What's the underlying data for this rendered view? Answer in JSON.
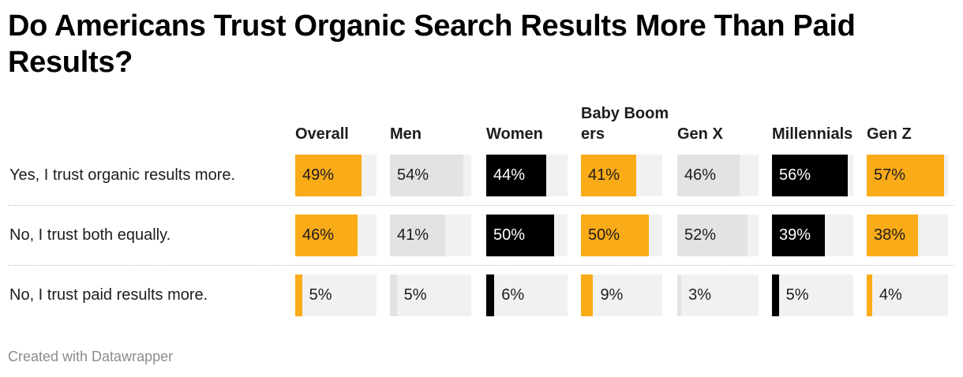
{
  "title": "Do Americans Trust Organic Search Results More Than Paid Results?",
  "footer": "Created with Datawrapper",
  "colors": {
    "accent": "#faab18",
    "dark": "#000000",
    "light": "#e3e3e3",
    "track": "#f1f1f1"
  },
  "chart_data": {
    "type": "table",
    "title": "Do Americans Trust Organic Search Results More Than Paid Results?",
    "columns": [
      {
        "label": "Overall",
        "color": "#faab18"
      },
      {
        "label": "Men",
        "color": "#e3e3e3"
      },
      {
        "label": "Women",
        "color": "#000000"
      },
      {
        "label": "Baby Boomers",
        "color": "#faab18"
      },
      {
        "label": "Gen X",
        "color": "#e3e3e3"
      },
      {
        "label": "Millennials",
        "color": "#000000"
      },
      {
        "label": "Gen Z",
        "color": "#faab18"
      }
    ],
    "rows": [
      {
        "label": "Yes, I trust organic results more.",
        "values": [
          49,
          54,
          44,
          41,
          46,
          56,
          57
        ],
        "display": [
          "49%",
          "54%",
          "44%",
          "41%",
          "46%",
          "56%",
          "57%"
        ]
      },
      {
        "label": "No, I trust both equally.",
        "values": [
          46,
          41,
          50,
          50,
          52,
          39,
          38
        ],
        "display": [
          "46%",
          "41%",
          "50%",
          "50%",
          "52%",
          "39%",
          "38%"
        ]
      },
      {
        "label": "No, I trust paid results more.",
        "values": [
          5,
          5,
          6,
          9,
          3,
          5,
          4
        ],
        "display": [
          "5%",
          "5%",
          "6%",
          "9%",
          "3%",
          "5%",
          "4%"
        ]
      }
    ],
    "value_max": 60
  }
}
